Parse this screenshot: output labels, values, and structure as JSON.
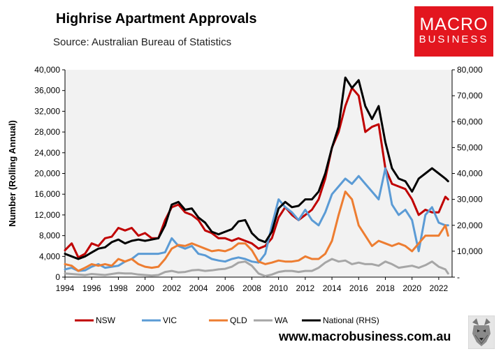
{
  "header": {
    "title": "Highrise Apartment Approvals",
    "subtitle": "Source: Australian Bureau of Statistics"
  },
  "logo": {
    "line1": "MACRO",
    "line2": "BUSINESS",
    "color": "#e3161f"
  },
  "footer": {
    "url": "www.macrobusiness.com.au"
  },
  "chart_data": {
    "type": "line",
    "title": "Highrise Apartment Approvals",
    "ylabel": "Number (Rolling Annual)",
    "ylim": [
      0,
      40000
    ],
    "y2lim": [
      0,
      80000
    ],
    "xlim": [
      1994,
      2023
    ],
    "x_ticks": [
      "1994",
      "1996",
      "1998",
      "2000",
      "2002",
      "2004",
      "2006",
      "2008",
      "2010",
      "2012",
      "2014",
      "2016",
      "2018",
      "2020",
      "2022"
    ],
    "y_ticks": [
      "0",
      "4,000",
      "8,000",
      "12,000",
      "16,000",
      "20,000",
      "24,000",
      "28,000",
      "32,000",
      "36,000",
      "40,000"
    ],
    "y2_ticks": [
      "-",
      "10,000",
      "20,000",
      "30,000",
      "40,000",
      "50,000",
      "60,000",
      "70,000",
      "80,000"
    ],
    "grid": false,
    "legend_position": "bottom",
    "series": [
      {
        "name": "NSW",
        "color": "#c00000",
        "axis": "left",
        "x": [
          1994,
          1994.5,
          1995,
          1995.5,
          1996,
          1996.5,
          1997,
          1997.5,
          1998,
          1998.5,
          1999,
          1999.5,
          2000,
          2000.5,
          2001,
          2001.5,
          2002,
          2002.5,
          2003,
          2003.5,
          2004,
          2004.5,
          2005,
          2005.5,
          2006,
          2006.5,
          2007,
          2007.5,
          2008,
          2008.5,
          2009,
          2009.5,
          2010,
          2010.5,
          2011,
          2011.5,
          2012,
          2012.5,
          2013,
          2013.5,
          2014,
          2014.5,
          2015,
          2015.5,
          2016,
          2016.5,
          2017,
          2017.5,
          2018,
          2018.5,
          2019,
          2019.5,
          2020,
          2020.5,
          2021,
          2021.5,
          2022,
          2022.5,
          2022.7
        ],
        "values": [
          5200,
          6500,
          3800,
          4500,
          6500,
          6000,
          7500,
          7800,
          9500,
          9000,
          9500,
          8000,
          8500,
          7500,
          7500,
          11000,
          13500,
          14000,
          12500,
          12000,
          11000,
          9000,
          8500,
          7500,
          7500,
          7000,
          7500,
          7000,
          6500,
          5500,
          6000,
          7500,
          11500,
          13500,
          12000,
          11000,
          12000,
          13000,
          15000,
          19000,
          25000,
          28000,
          33000,
          36500,
          35000,
          28000,
          29000,
          29500,
          21000,
          18000,
          17500,
          17000,
          15000,
          12000,
          13000,
          12500,
          12500,
          15500,
          15000
        ]
      },
      {
        "name": "VIC",
        "color": "#5b9bd5",
        "axis": "left",
        "x": [
          1994,
          1994.5,
          1995,
          1995.5,
          1996,
          1996.5,
          1997,
          1997.5,
          1998,
          1998.5,
          1999,
          1999.5,
          2000,
          2000.5,
          2001,
          2001.5,
          2002,
          2002.5,
          2003,
          2003.5,
          2004,
          2004.5,
          2005,
          2005.5,
          2006,
          2006.5,
          2007,
          2007.5,
          2008,
          2008.5,
          2009,
          2009.5,
          2010,
          2010.5,
          2011,
          2011.5,
          2012,
          2012.5,
          2013,
          2013.5,
          2014,
          2014.5,
          2015,
          2015.5,
          2016,
          2016.5,
          2017,
          2017.5,
          2018,
          2018.5,
          2019,
          2019.5,
          2020,
          2020.5,
          2021,
          2021.5,
          2022,
          2022.5,
          2022.7
        ],
        "values": [
          1500,
          1800,
          1200,
          1300,
          2000,
          2500,
          1800,
          2000,
          2200,
          3000,
          3500,
          4500,
          4500,
          4500,
          4500,
          4800,
          7500,
          6000,
          5500,
          6000,
          4500,
          4200,
          3500,
          3200,
          3000,
          3500,
          3800,
          3500,
          3000,
          2800,
          4500,
          10000,
          15000,
          13500,
          12500,
          11000,
          13000,
          11000,
          10000,
          12500,
          16000,
          17500,
          19000,
          18000,
          19500,
          18000,
          16500,
          15000,
          21000,
          14000,
          12000,
          13000,
          11000,
          5000,
          12000,
          13500,
          10500,
          10000,
          10000
        ]
      },
      {
        "name": "QLD",
        "color": "#ed7d31",
        "axis": "left",
        "x": [
          1994,
          1994.5,
          1995,
          1995.5,
          1996,
          1996.5,
          1997,
          1997.5,
          1998,
          1998.5,
          1999,
          1999.5,
          2000,
          2000.5,
          2001,
          2001.5,
          2002,
          2002.5,
          2003,
          2003.5,
          2004,
          2004.5,
          2005,
          2005.5,
          2006,
          2006.5,
          2007,
          2007.5,
          2008,
          2008.5,
          2009,
          2009.5,
          2010,
          2010.5,
          2011,
          2011.5,
          2012,
          2012.5,
          2013,
          2013.5,
          2014,
          2014.5,
          2015,
          2015.5,
          2016,
          2016.5,
          2017,
          2017.5,
          2018,
          2018.5,
          2019,
          2019.5,
          2020,
          2020.5,
          2021,
          2021.5,
          2022,
          2022.5,
          2022.7
        ],
        "values": [
          2500,
          2200,
          1200,
          1800,
          2500,
          2200,
          2500,
          2200,
          3500,
          3000,
          3500,
          2500,
          2000,
          1800,
          2000,
          3500,
          5500,
          6200,
          6000,
          6500,
          6000,
          5500,
          5000,
          5200,
          5000,
          5500,
          6500,
          6500,
          5200,
          3000,
          2500,
          2800,
          3200,
          3000,
          3000,
          3200,
          4000,
          3500,
          3500,
          4500,
          7000,
          12000,
          16500,
          15000,
          10000,
          8000,
          6000,
          7000,
          6500,
          6000,
          6500,
          6000,
          5000,
          6500,
          8000,
          8000,
          8000,
          10000,
          8000
        ]
      },
      {
        "name": "WA",
        "color": "#a6a6a6",
        "axis": "left",
        "x": [
          1994,
          1994.5,
          1995,
          1995.5,
          1996,
          1996.5,
          1997,
          1997.5,
          1998,
          1998.5,
          1999,
          1999.5,
          2000,
          2000.5,
          2001,
          2001.5,
          2002,
          2002.5,
          2003,
          2003.5,
          2004,
          2004.5,
          2005,
          2005.5,
          2006,
          2006.5,
          2007,
          2007.5,
          2008,
          2008.5,
          2009,
          2009.5,
          2010,
          2010.5,
          2011,
          2011.5,
          2012,
          2012.5,
          2013,
          2013.5,
          2014,
          2014.5,
          2015,
          2015.5,
          2016,
          2016.5,
          2017,
          2017.5,
          2018,
          2018.5,
          2019,
          2019.5,
          2020,
          2020.5,
          2021,
          2021.5,
          2022,
          2022.5,
          2022.7
        ],
        "values": [
          700,
          600,
          500,
          400,
          600,
          500,
          400,
          600,
          800,
          700,
          700,
          500,
          400,
          300,
          400,
          1000,
          1200,
          900,
          1000,
          1300,
          1400,
          1200,
          1300,
          1500,
          1600,
          2000,
          2800,
          3000,
          2200,
          700,
          200,
          500,
          1000,
          1200,
          1200,
          1000,
          1200,
          1200,
          1800,
          2800,
          3500,
          3000,
          3200,
          2500,
          2800,
          2500,
          2500,
          2200,
          3000,
          2500,
          1800,
          2000,
          2200,
          1800,
          2300,
          3000,
          2000,
          1500,
          700
        ]
      },
      {
        "name": "National (RHS)",
        "color": "#000000",
        "axis": "right",
        "x": [
          1994,
          1994.5,
          1995,
          1995.5,
          1996,
          1996.5,
          1997,
          1997.5,
          1998,
          1998.5,
          1999,
          1999.5,
          2000,
          2000.5,
          2001,
          2001.5,
          2002,
          2002.5,
          2003,
          2003.5,
          2004,
          2004.5,
          2005,
          2005.5,
          2006,
          2006.5,
          2007,
          2007.5,
          2008,
          2008.5,
          2009,
          2009.5,
          2010,
          2010.5,
          2011,
          2011.5,
          2012,
          2012.5,
          2013,
          2013.5,
          2014,
          2014.5,
          2015,
          2015.5,
          2016,
          2016.5,
          2017,
          2017.5,
          2018,
          2018.5,
          2019,
          2019.5,
          2020,
          2020.5,
          2021,
          2021.5,
          2022,
          2022.5,
          2022.7
        ],
        "values": [
          9000,
          8000,
          7000,
          8000,
          9500,
          11000,
          11500,
          13500,
          14500,
          13000,
          14000,
          14500,
          14000,
          14500,
          15000,
          20000,
          28000,
          29000,
          26000,
          26500,
          23000,
          21000,
          17500,
          16500,
          17500,
          18500,
          21500,
          22000,
          17000,
          14500,
          13500,
          17500,
          26500,
          29000,
          27000,
          27500,
          30000,
          30000,
          33000,
          40000,
          50000,
          58000,
          77000,
          73000,
          76000,
          66000,
          61000,
          66000,
          52000,
          42000,
          38000,
          37000,
          33000,
          38000,
          40000,
          42000,
          40000,
          38000,
          37000
        ]
      }
    ]
  }
}
